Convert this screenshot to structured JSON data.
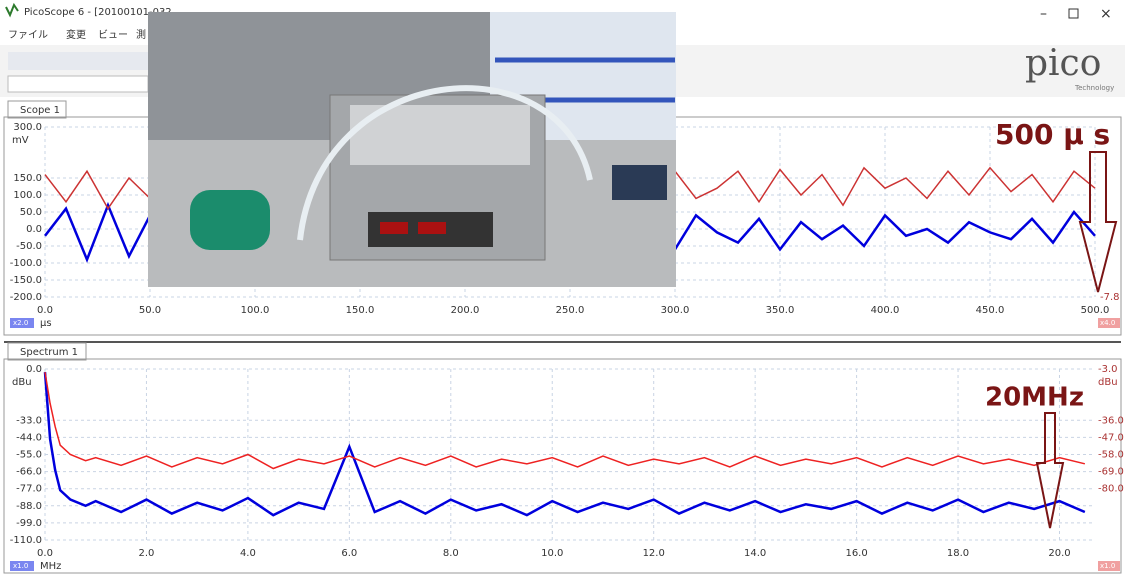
{
  "window": {
    "title": "PicoScope 6 - [20100101-032",
    "menu": [
      "ファイル",
      "変更",
      "ビュー",
      "測"
    ]
  },
  "logo": {
    "name": "pico",
    "sub": "Technology"
  },
  "scope": {
    "tab": "Scope 1",
    "y_unit": "mV",
    "x_unit": "μs",
    "badge_left": "x2.0",
    "badge_right": "x4.0",
    "right_label": "-7.8",
    "annotation": "500 μ s",
    "xlim": [
      0,
      500
    ],
    "ylim": [
      -200,
      300
    ],
    "xticks": [
      {
        "value": 0,
        "label": "0.0"
      },
      {
        "value": 50,
        "label": "50.0"
      },
      {
        "value": 100,
        "label": "100.0"
      },
      {
        "value": 150,
        "label": "150.0"
      },
      {
        "value": 200,
        "label": "200.0"
      },
      {
        "value": 250,
        "label": "250.0"
      },
      {
        "value": 300,
        "label": "300.0"
      },
      {
        "value": 350,
        "label": "350.0"
      },
      {
        "value": 400,
        "label": "400.0"
      },
      {
        "value": 450,
        "label": "450.0"
      },
      {
        "value": 500,
        "label": "500.0"
      }
    ],
    "yticks": [
      {
        "value": 300,
        "label": "300.0"
      },
      {
        "value": 150,
        "label": "150.0"
      },
      {
        "value": 100,
        "label": "100.0"
      },
      {
        "value": 50,
        "label": "50.0"
      },
      {
        "value": 0,
        "label": "0.0"
      },
      {
        "value": -50,
        "label": "-50.0"
      },
      {
        "value": -100,
        "label": "-100.0"
      },
      {
        "value": -150,
        "label": "-150.0"
      },
      {
        "value": -200,
        "label": "-200.0"
      }
    ],
    "x": [
      0,
      10,
      20,
      30,
      40,
      50,
      60,
      70,
      80,
      90,
      100,
      110,
      120,
      130,
      140,
      150,
      160,
      170,
      180,
      190,
      200,
      210,
      220,
      230,
      240,
      250,
      260,
      270,
      280,
      290,
      300,
      310,
      320,
      330,
      340,
      350,
      360,
      370,
      380,
      390,
      400,
      410,
      420,
      430,
      440,
      450,
      460,
      470,
      480,
      490,
      500
    ],
    "series": [
      {
        "color": "#0000dd",
        "values": [
          -20,
          60,
          -90,
          70,
          -80,
          40,
          -60,
          50,
          -70,
          40,
          -60,
          50,
          -70,
          40,
          -60,
          50,
          -70,
          40,
          -60,
          50,
          -70,
          40,
          -60,
          50,
          -70,
          40,
          -60,
          50,
          -70,
          40,
          -60,
          40,
          -10,
          -40,
          30,
          -60,
          20,
          -30,
          10,
          -50,
          40,
          -20,
          0,
          -40,
          20,
          -10,
          -30,
          30,
          -40,
          50,
          -20
        ]
      },
      {
        "color": "#cc3333",
        "values": [
          160,
          80,
          170,
          60,
          150,
          90,
          170,
          70,
          160,
          80,
          170,
          70,
          160,
          80,
          170,
          70,
          160,
          80,
          170,
          70,
          160,
          80,
          170,
          70,
          160,
          80,
          170,
          70,
          160,
          80,
          170,
          90,
          120,
          170,
          80,
          175,
          100,
          160,
          70,
          180,
          120,
          150,
          90,
          170,
          100,
          180,
          110,
          160,
          80,
          170,
          120
        ]
      }
    ]
  },
  "spectrum": {
    "tab": "Spectrum 1",
    "y_unit": "dBu",
    "y2_unit": "dBu",
    "x_unit": "MHz",
    "badge_left": "x1.0",
    "badge_right": "x1.0",
    "annotation": "20MHz",
    "xlim": [
      0,
      20.7
    ],
    "ylim": [
      -110,
      0
    ],
    "y2lim": [
      -113,
      -3
    ],
    "xticks": [
      {
        "value": 0,
        "label": "0.0"
      },
      {
        "value": 2,
        "label": "2.0"
      },
      {
        "value": 4,
        "label": "4.0"
      },
      {
        "value": 6,
        "label": "6.0"
      },
      {
        "value": 8,
        "label": "8.0"
      },
      {
        "value": 10,
        "label": "10.0"
      },
      {
        "value": 12,
        "label": "12.0"
      },
      {
        "value": 14,
        "label": "14.0"
      },
      {
        "value": 16,
        "label": "16.0"
      },
      {
        "value": 18,
        "label": "18.0"
      },
      {
        "value": 20,
        "label": "20.0"
      }
    ],
    "yticks": [
      {
        "value": 0,
        "label": "0.0"
      },
      {
        "value": -33,
        "label": "-33.0"
      },
      {
        "value": -44,
        "label": "-44.0"
      },
      {
        "value": -55,
        "label": "-55.0"
      },
      {
        "value": -66,
        "label": "-66.0"
      },
      {
        "value": -77,
        "label": "-77.0"
      },
      {
        "value": -88,
        "label": "-88.0"
      },
      {
        "value": -99,
        "label": "-99.0"
      },
      {
        "value": -110,
        "label": "-110.0"
      }
    ],
    "y2ticks": [
      {
        "value": -3,
        "label": "-3.0"
      },
      {
        "value": -36,
        "label": "-36.0"
      },
      {
        "value": -47,
        "label": "-47.0"
      },
      {
        "value": -58,
        "label": "-58.0"
      },
      {
        "value": -69,
        "label": "-69.0"
      },
      {
        "value": -80,
        "label": "-80.0"
      }
    ],
    "x": [
      0,
      0.1,
      0.2,
      0.3,
      0.5,
      0.8,
      1,
      1.5,
      2,
      2.5,
      3,
      3.5,
      4,
      4.5,
      5,
      5.5,
      6,
      6.5,
      7,
      7.5,
      8,
      8.5,
      9,
      9.5,
      10,
      10.5,
      11,
      11.5,
      12,
      12.5,
      13,
      13.5,
      14,
      14.5,
      15,
      15.5,
      16,
      16.5,
      17,
      17.5,
      18,
      18.5,
      19,
      19.5,
      20,
      20.5
    ],
    "series": [
      {
        "color": "#0000dd",
        "values": [
          -2,
          -45,
          -65,
          -78,
          -84,
          -88,
          -85,
          -92,
          -84,
          -93,
          -86,
          -91,
          -83,
          -94,
          -86,
          -90,
          -50,
          -92,
          -85,
          -93,
          -84,
          -91,
          -87,
          -94,
          -85,
          -92,
          -86,
          -90,
          -84,
          -93,
          -86,
          -91,
          -85,
          -92,
          -87,
          -90,
          -85,
          -93,
          -86,
          -91,
          -84,
          -92,
          -86,
          -90,
          -85,
          -92
        ]
      },
      {
        "color": "#ee2222",
        "values": [
          -5,
          -25,
          -40,
          -52,
          -58,
          -62,
          -60,
          -65,
          -59,
          -66,
          -60,
          -64,
          -58,
          -67,
          -61,
          -64,
          -59,
          -66,
          -60,
          -65,
          -59,
          -66,
          -61,
          -64,
          -60,
          -66,
          -59,
          -65,
          -61,
          -64,
          -60,
          -66,
          -59,
          -65,
          -61,
          -64,
          -60,
          -66,
          -60,
          -65,
          -59,
          -64,
          -61,
          -65,
          -60,
          -64
        ],
        "axis": "y2"
      }
    ]
  }
}
